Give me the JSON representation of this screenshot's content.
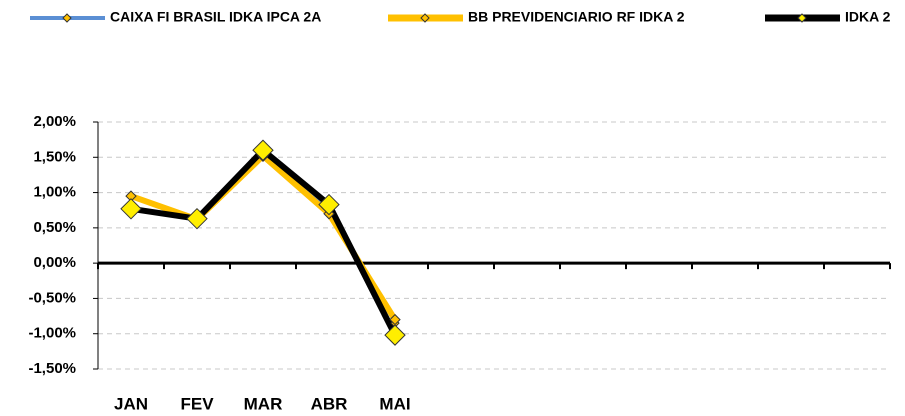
{
  "chart_data": {
    "type": "line",
    "categories": [
      "JAN",
      "FEV",
      "MAR",
      "ABR",
      "MAI",
      null,
      null,
      null,
      null,
      null,
      null,
      null
    ],
    "series": [
      {
        "name": "CAIXA FI BRASIL IDKA IPCA 2A",
        "color": "#5b8fd4",
        "values": [
          0.95,
          0.63,
          1.5,
          0.75,
          -0.85,
          null,
          null,
          null,
          null,
          null,
          null,
          null
        ]
      },
      {
        "name": "BB PREVIDENCIARIO RF IDKA 2",
        "color": "#ffc000",
        "values": [
          0.95,
          0.62,
          1.52,
          0.7,
          -0.8,
          null,
          null,
          null,
          null,
          null,
          null,
          null
        ]
      },
      {
        "name": "IDKA 2",
        "color": "#000000",
        "values": [
          0.77,
          0.63,
          1.6,
          0.83,
          -1.02,
          null,
          null,
          null,
          null,
          null,
          null,
          null
        ]
      }
    ],
    "ylim": [
      -1.5,
      2
    ],
    "yticks": [
      {
        "value": -1.5,
        "label": "-1,50%"
      },
      {
        "value": -1,
        "label": "-1,00%"
      },
      {
        "value": -0.5,
        "label": "-0,50%"
      },
      {
        "value": 0,
        "label": "0,00%"
      },
      {
        "value": 0.5,
        "label": "0,50%"
      },
      {
        "value": 1,
        "label": "1,00%"
      },
      {
        "value": 1.5,
        "label": "1,50%"
      },
      {
        "value": 2,
        "label": "2,00%"
      }
    ],
    "grid": true
  }
}
